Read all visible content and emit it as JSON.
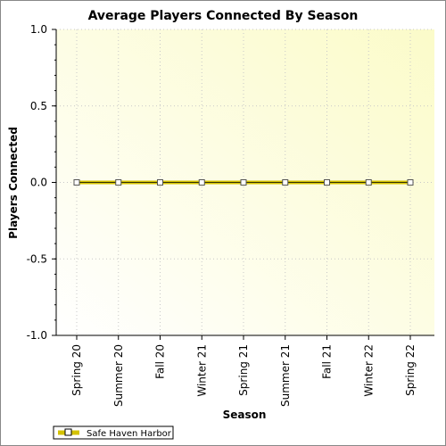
{
  "chart_data": {
    "type": "line",
    "title": "Average Players Connected By Season",
    "xlabel": "Season",
    "ylabel": "Players Connected",
    "categories": [
      "Spring 20",
      "Summer 20",
      "Fall 20",
      "Winter 21",
      "Spring 21",
      "Summer 21",
      "Fall 21",
      "Winter 22",
      "Spring 22"
    ],
    "series": [
      {
        "name": "Safe Haven Harbor",
        "values": [
          0,
          0,
          0,
          0,
          0,
          0,
          0,
          0,
          0
        ],
        "color": "#d4c200"
      }
    ],
    "ylim": [
      -1.0,
      1.0
    ],
    "yticks": [
      "1.0",
      "0.5",
      "0.0",
      "-0.5",
      "-1.0"
    ],
    "grid": true,
    "legend_position": "bottom-left",
    "background_colors": [
      "#ffffe0",
      "#fffff8"
    ]
  }
}
